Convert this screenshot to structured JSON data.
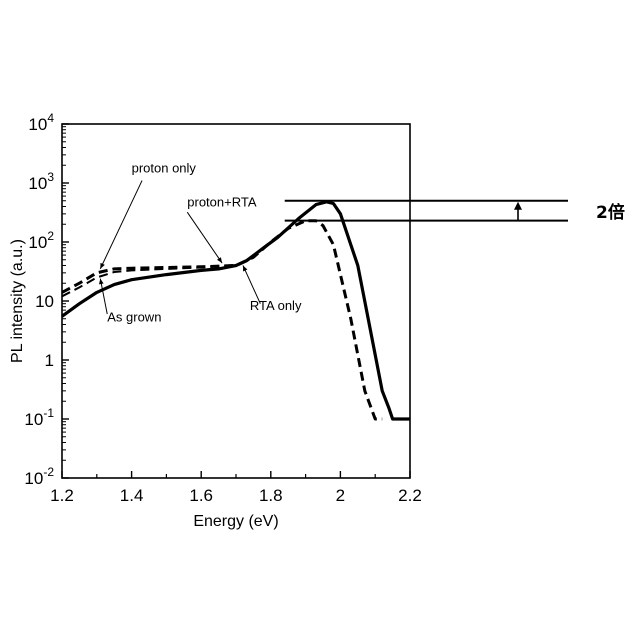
{
  "chart_data": {
    "type": "line",
    "xlabel": "Energy (eV)",
    "ylabel": "PL intensity (a.u.)",
    "xlim": [
      1.2,
      2.2
    ],
    "ylim": [
      0.01,
      10000
    ],
    "yscale": "log",
    "grid": false,
    "x_ticks": [
      "1.2",
      "1.4",
      "1.6",
      "1.8",
      "2",
      "2.2"
    ],
    "y_ticks": [
      {
        "base": "10",
        "exp": "-2",
        "value": 0.01
      },
      {
        "base": "10",
        "exp": "-1",
        "value": 0.1
      },
      {
        "base": "1",
        "exp": "",
        "value": 1
      },
      {
        "base": "10",
        "exp": "",
        "value": 10
      },
      {
        "base": "10",
        "exp": "2",
        "value": 100
      },
      {
        "base": "10",
        "exp": "3",
        "value": 1000
      },
      {
        "base": "10",
        "exp": "4",
        "value": 10000
      }
    ],
    "series": [
      {
        "name": "As grown",
        "style": "solid",
        "width": 3.2,
        "x": [
          1.2,
          1.25,
          1.3,
          1.35,
          1.4,
          1.5,
          1.6,
          1.65,
          1.7,
          1.73,
          1.78,
          1.82,
          1.88,
          1.93,
          1.96,
          1.98,
          2.0,
          2.05,
          2.08,
          2.12,
          2.14,
          2.15,
          2.2
        ],
        "y": [
          5.5,
          9,
          14,
          19,
          23,
          28,
          33,
          35,
          40,
          48,
          80,
          120,
          250,
          430,
          480,
          450,
          300,
          40,
          5,
          0.3,
          0.15,
          0.1,
          0.1
        ]
      },
      {
        "name": "proton only",
        "style": "dashed",
        "width": 3.0,
        "x": [
          1.2,
          1.25,
          1.3,
          1.35,
          1.4,
          1.5,
          1.6,
          1.7,
          1.75,
          1.8,
          1.85,
          1.9,
          1.93,
          1.95,
          1.98,
          2.03,
          2.07,
          2.1,
          2.12
        ],
        "y": [
          14,
          20,
          30,
          35,
          36,
          37,
          38,
          40,
          55,
          100,
          170,
          230,
          230,
          190,
          90,
          5,
          0.3,
          0.1,
          0.1
        ]
      },
      {
        "name": "proton+RTA",
        "style": "dashed",
        "width": 2.0,
        "x": [
          1.2,
          1.25,
          1.3,
          1.35,
          1.4,
          1.5,
          1.6,
          1.7
        ],
        "y": [
          12,
          17,
          25,
          31,
          33,
          35,
          37,
          41
        ]
      }
    ],
    "annotations": [
      {
        "text": "proton only",
        "x": 1.4,
        "y": 1500
      },
      {
        "text": "proton+RTA",
        "x": 1.56,
        "y": 400
      },
      {
        "text": "As grown",
        "x": 1.33,
        "y": 4.5
      },
      {
        "text": "RTA only",
        "x": 1.74,
        "y": 7
      }
    ],
    "reference_lines": [
      500,
      230
    ],
    "ratio_label": "2倍"
  }
}
